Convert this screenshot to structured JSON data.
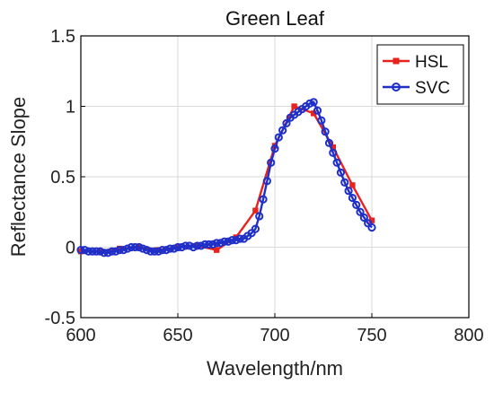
{
  "chart_data": {
    "type": "line",
    "title": "Green Leaf",
    "xlabel": "Wavelength/nm",
    "ylabel": "Reflectance Slope",
    "xlim": [
      600,
      800
    ],
    "ylim": [
      -0.5,
      1.5
    ],
    "xticks": [
      600,
      650,
      700,
      750,
      800
    ],
    "yticks": [
      -0.5,
      0,
      0.5,
      1,
      1.5
    ],
    "xtick_labels": [
      "600",
      "650",
      "700",
      "750",
      "800"
    ],
    "ytick_labels": [
      "-0.5",
      "0",
      "0.5",
      "1",
      "1.5"
    ],
    "grid": true,
    "legend": "top-right",
    "series": [
      {
        "name": "HSL",
        "color": "#e8231f",
        "marker": "square",
        "x": [
          600,
          610,
          620,
          630,
          640,
          650,
          660,
          670,
          680,
          690,
          700,
          710,
          720,
          730,
          740,
          750
        ],
        "y": [
          -0.03,
          -0.03,
          -0.01,
          0.0,
          -0.02,
          0.0,
          0.01,
          -0.02,
          0.07,
          0.26,
          0.72,
          1.0,
          0.95,
          0.71,
          0.44,
          0.19
        ]
      },
      {
        "name": "SVC",
        "color": "#1f2fc8",
        "marker": "circle",
        "x": [
          600,
          602,
          604,
          606,
          608,
          610,
          612,
          614,
          616,
          618,
          620,
          622,
          624,
          626,
          628,
          630,
          632,
          634,
          636,
          638,
          640,
          642,
          644,
          646,
          648,
          650,
          652,
          654,
          656,
          658,
          660,
          662,
          664,
          666,
          668,
          670,
          672,
          674,
          676,
          678,
          680,
          682,
          684,
          686,
          688,
          690,
          692,
          694,
          696,
          698,
          700,
          702,
          704,
          706,
          708,
          710,
          712,
          714,
          716,
          718,
          720,
          722,
          724,
          726,
          728,
          730,
          732,
          734,
          736,
          738,
          740,
          742,
          744,
          746,
          748,
          750
        ],
        "y": [
          -0.02,
          -0.02,
          -0.03,
          -0.03,
          -0.03,
          -0.03,
          -0.04,
          -0.04,
          -0.03,
          -0.03,
          -0.02,
          -0.02,
          -0.01,
          0.0,
          0.0,
          0.0,
          -0.01,
          -0.02,
          -0.03,
          -0.03,
          -0.03,
          -0.02,
          -0.02,
          -0.01,
          -0.01,
          0.0,
          0.0,
          0.01,
          0.01,
          0.0,
          0.01,
          0.01,
          0.02,
          0.02,
          0.02,
          0.03,
          0.03,
          0.04,
          0.04,
          0.05,
          0.05,
          0.06,
          0.06,
          0.08,
          0.1,
          0.13,
          0.22,
          0.34,
          0.47,
          0.6,
          0.7,
          0.78,
          0.83,
          0.88,
          0.92,
          0.94,
          0.96,
          0.98,
          1.0,
          1.02,
          1.03,
          0.97,
          0.9,
          0.82,
          0.74,
          0.67,
          0.6,
          0.53,
          0.46,
          0.4,
          0.35,
          0.3,
          0.25,
          0.21,
          0.17,
          0.14
        ]
      }
    ]
  }
}
